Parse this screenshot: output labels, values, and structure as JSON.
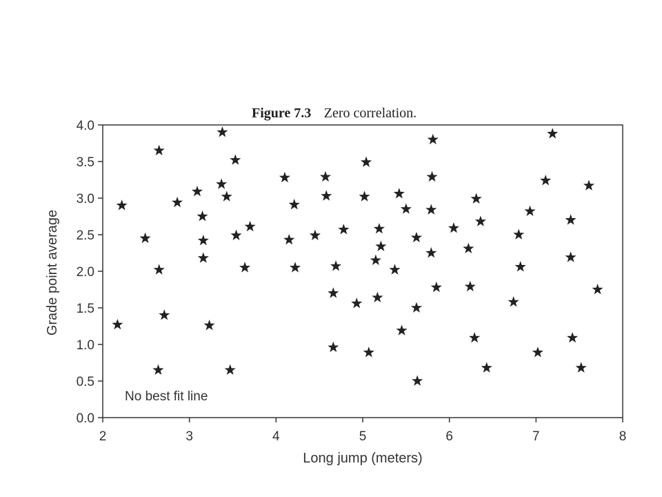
{
  "figure": {
    "number": "Figure 7.3",
    "caption": "Zero correlation."
  },
  "chart_data": {
    "type": "scatter",
    "title": "Figure 7.3 Zero correlation.",
    "xlabel": "Long jump (meters)",
    "ylabel": "Grade point average",
    "xlim": [
      2,
      8
    ],
    "ylim": [
      0.0,
      4.0
    ],
    "xticks": [
      2,
      3,
      4,
      5,
      6,
      7,
      8
    ],
    "yticks": [
      "0.0",
      "0.5",
      "1.0",
      "1.5",
      "2.0",
      "2.5",
      "3.0",
      "3.5",
      "4.0"
    ],
    "marker": "star",
    "annotation": "No best fit line",
    "series": [
      {
        "points": [
          [
            2.17,
            1.27
          ],
          [
            2.22,
            2.9
          ],
          [
            2.49,
            2.45
          ],
          [
            2.64,
            0.65
          ],
          [
            2.65,
            2.02
          ],
          [
            2.65,
            3.65
          ],
          [
            2.71,
            1.4
          ],
          [
            2.86,
            2.94
          ],
          [
            3.09,
            3.09
          ],
          [
            3.15,
            2.75
          ],
          [
            3.16,
            2.42
          ],
          [
            3.16,
            2.18
          ],
          [
            3.23,
            1.26
          ],
          [
            3.37,
            3.19
          ],
          [
            3.38,
            3.9
          ],
          [
            3.43,
            3.02
          ],
          [
            3.47,
            0.65
          ],
          [
            3.53,
            3.52
          ],
          [
            3.54,
            2.49
          ],
          [
            3.64,
            2.05
          ],
          [
            3.7,
            2.61
          ],
          [
            4.1,
            3.28
          ],
          [
            4.15,
            2.43
          ],
          [
            4.21,
            2.91
          ],
          [
            4.22,
            2.05
          ],
          [
            4.45,
            2.49
          ],
          [
            4.57,
            3.29
          ],
          [
            4.58,
            3.03
          ],
          [
            4.66,
            1.7
          ],
          [
            4.66,
            0.96
          ],
          [
            4.69,
            2.07
          ],
          [
            4.78,
            2.57
          ],
          [
            4.93,
            1.56
          ],
          [
            5.02,
            3.02
          ],
          [
            5.04,
            3.49
          ],
          [
            5.07,
            0.89
          ],
          [
            5.15,
            2.15
          ],
          [
            5.17,
            1.64
          ],
          [
            5.19,
            2.58
          ],
          [
            5.21,
            2.34
          ],
          [
            5.37,
            2.02
          ],
          [
            5.42,
            3.06
          ],
          [
            5.45,
            1.19
          ],
          [
            5.5,
            2.85
          ],
          [
            5.62,
            2.46
          ],
          [
            5.62,
            1.5
          ],
          [
            5.63,
            0.5
          ],
          [
            5.79,
            2.25
          ],
          [
            5.79,
            2.84
          ],
          [
            5.8,
            3.29
          ],
          [
            5.81,
            3.8
          ],
          [
            5.85,
            1.78
          ],
          [
            6.05,
            2.59
          ],
          [
            6.22,
            2.31
          ],
          [
            6.24,
            1.79
          ],
          [
            6.29,
            1.09
          ],
          [
            6.31,
            2.99
          ],
          [
            6.36,
            2.68
          ],
          [
            6.43,
            0.68
          ],
          [
            6.74,
            1.58
          ],
          [
            6.8,
            2.5
          ],
          [
            6.82,
            2.06
          ],
          [
            6.93,
            2.82
          ],
          [
            7.02,
            0.89
          ],
          [
            7.11,
            3.24
          ],
          [
            7.19,
            3.88
          ],
          [
            7.4,
            2.7
          ],
          [
            7.4,
            2.19
          ],
          [
            7.42,
            1.09
          ],
          [
            7.52,
            0.68
          ],
          [
            7.61,
            3.17
          ],
          [
            7.71,
            1.75
          ]
        ]
      }
    ]
  }
}
